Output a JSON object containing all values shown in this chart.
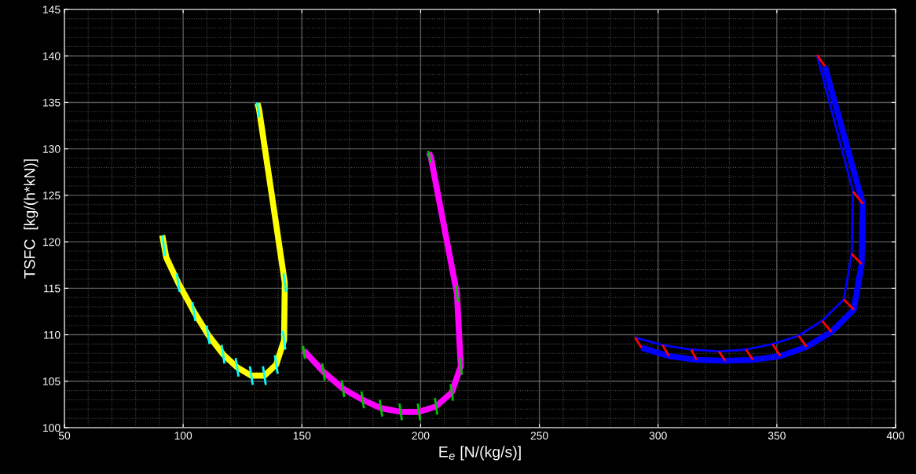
{
  "chart_data": {
    "type": "line",
    "xlabel": "E$_{e}$ [N/(kg/s)]",
    "ylabel": "TSFC  [kg/(h*kN)]",
    "xlim": [
      50,
      400
    ],
    "xticks": [
      50,
      100,
      150,
      200,
      250,
      300,
      350,
      400
    ],
    "ylim": [
      100,
      145
    ],
    "yticks": [
      100,
      105,
      110,
      115,
      120,
      125,
      130,
      135,
      140,
      145
    ],
    "grid": true,
    "legend": false,
    "marker": "none",
    "line_style": "solid",
    "series": [
      {
        "color": "#ffff00",
        "x": [
          91.2,
          92.9,
          97.9,
          104.5,
          110.5,
          116.8,
          122.7,
          128.7,
          134.2,
          139.2,
          142.5,
          142.8,
          132.0,
          131.3
        ],
        "values": [
          120.7,
          118.3,
          115.6,
          112.5,
          110.0,
          107.9,
          106.5,
          105.6,
          105.6,
          106.8,
          109.4,
          115.6,
          134.2,
          134.9
        ]
      },
      {
        "color": "#00ffff",
        "x": [
          91.2,
          92.4,
          null,
          97.3,
          98.5,
          null,
          103.9,
          105.1,
          null,
          109.9,
          111.1,
          null,
          116.2,
          117.4,
          null,
          122.1,
          123.3,
          null,
          128.1,
          129.3,
          null,
          133.6,
          134.8,
          null,
          138.6,
          139.8,
          null,
          142.0,
          143.0,
          null,
          142.3,
          143.3,
          null,
          131.1,
          132.1
        ],
        "values": [
          120.7,
          118.5,
          null,
          116.6,
          114.6,
          null,
          113.5,
          111.5,
          null,
          111.0,
          109.0,
          null,
          108.9,
          106.9,
          null,
          107.5,
          105.5,
          null,
          106.6,
          104.6,
          null,
          106.6,
          104.6,
          null,
          107.8,
          105.8,
          null,
          110.4,
          108.4,
          null,
          116.6,
          114.6,
          null,
          135.0,
          133.4
        ]
      },
      {
        "color": "#ff00ff",
        "x": [
          150.8,
          159.1,
          167.3,
          175.6,
          183.3,
          191.6,
          199.3,
          206.5,
          213.1,
          216.9,
          215.3,
          204.3,
          203.5
        ],
        "values": [
          108.3,
          106.0,
          104.2,
          103.0,
          102.1,
          101.7,
          101.7,
          102.3,
          103.8,
          106.6,
          114.4,
          129.1,
          129.6
        ]
      },
      {
        "color": "#00c000",
        "x": [
          150.5,
          151.3,
          null,
          158.6,
          159.6,
          null,
          166.8,
          167.8,
          null,
          175.1,
          176.1,
          null,
          182.8,
          183.8,
          null,
          191.1,
          192.1,
          null,
          198.8,
          199.8,
          null,
          206.0,
          207.0,
          null,
          212.6,
          213.6,
          null,
          216.4,
          217.4,
          null,
          214.8,
          215.8,
          null,
          203.2,
          204.2
        ],
        "values": [
          108.8,
          107.4,
          null,
          106.9,
          105.1,
          null,
          105.1,
          103.3,
          null,
          103.9,
          102.1,
          null,
          103.0,
          101.2,
          null,
          102.6,
          100.8,
          null,
          102.6,
          100.8,
          null,
          103.2,
          101.4,
          null,
          104.7,
          102.9,
          null,
          107.5,
          105.7,
          null,
          115.3,
          113.5,
          null,
          129.8,
          128.5
        ]
      },
      {
        "color": "#0000ff",
        "x": [
          293.0,
          304.6,
          316.2,
          328.3,
          339.9,
          351.5,
          362.5,
          373.0,
          382.4,
          385.7,
          386.2,
          370.2
        ],
        "values": [
          108.6,
          107.7,
          107.3,
          107.2,
          107.3,
          107.7,
          108.7,
          110.3,
          112.7,
          117.6,
          124.1,
          138.9
        ]
      },
      {
        "color": "#0000ff",
        "x": [
          290.3,
          301.8,
          314.0,
          325.6,
          337.1,
          348.2,
          359.2,
          369.1,
          378.2,
          381.5,
          382.1,
          366.9
        ],
        "values": [
          109.7,
          108.9,
          108.4,
          108.2,
          108.4,
          109.0,
          109.9,
          111.5,
          113.8,
          118.7,
          125.4,
          140.1
        ]
      },
      {
        "color": "#ff0000",
        "x": [
          290.3,
          293.0,
          null,
          301.8,
          304.6,
          null,
          314.0,
          316.2,
          null,
          325.6,
          328.3,
          null,
          337.1,
          339.9,
          null,
          348.2,
          351.5,
          null,
          359.2,
          362.5,
          null,
          369.1,
          373.0,
          null,
          378.2,
          382.4,
          null,
          381.5,
          385.7,
          null,
          382.1,
          386.2,
          null,
          366.9,
          370.2
        ],
        "values": [
          109.7,
          108.6,
          null,
          108.9,
          107.7,
          null,
          108.4,
          107.3,
          null,
          108.2,
          107.2,
          null,
          108.4,
          107.3,
          null,
          109.0,
          107.7,
          null,
          109.9,
          108.7,
          null,
          111.5,
          110.3,
          null,
          113.8,
          112.7,
          null,
          118.7,
          117.6,
          null,
          125.4,
          124.1,
          null,
          140.1,
          138.9
        ]
      }
    ]
  }
}
